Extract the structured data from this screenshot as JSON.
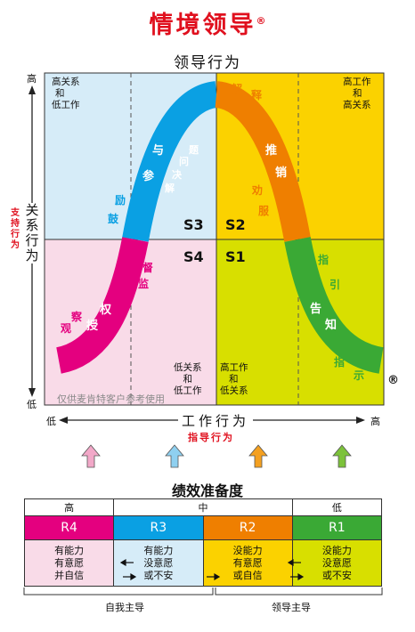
{
  "title": "情境领导",
  "title_mark": "®",
  "subtitle": "领导行为",
  "y_axis": {
    "high": "高",
    "low": "低",
    "label": "关系行为",
    "sublabel": "支持行为"
  },
  "x_axis": {
    "low": "低",
    "high": "高",
    "label": "工作行为",
    "sublabel": "指导行为"
  },
  "quadrants": {
    "top_left": [
      "高关系",
      "和",
      "低工作"
    ],
    "top_right": [
      "高工作",
      "和",
      "高关系"
    ],
    "bottom_left": [
      "低关系",
      "和",
      "低工作"
    ],
    "bottom_right": [
      "高工作",
      "和",
      "低关系"
    ]
  },
  "styles": {
    "s1": "S1",
    "s2": "S2",
    "s3": "S3",
    "s4": "S4"
  },
  "curve_words": {
    "s4_main": [
      "授",
      "权"
    ],
    "s4_sub": [
      "观",
      "察"
    ],
    "s4_sub2": [
      "监",
      "督"
    ],
    "s3_main": [
      "参",
      "与"
    ],
    "s3_sub": [
      "鼓",
      "励"
    ],
    "s3_sub2": [
      "解",
      "决",
      "问",
      "题"
    ],
    "s2_main": [
      "推",
      "销"
    ],
    "s2_sub": [
      "解",
      "释"
    ],
    "s2_sub2": [
      "劝",
      "服"
    ],
    "s1_main": [
      "告",
      "知"
    ],
    "s1_sub": [
      "指",
      "引"
    ],
    "s1_sub2": [
      "指",
      "示"
    ]
  },
  "registered_mark": "®",
  "watermark": "仅供麦肯特客户参考使用",
  "readiness": {
    "title": "绩效准备度",
    "header": {
      "high": "高",
      "mid": "中",
      "low": "低"
    },
    "levels": [
      {
        "code": "R4",
        "color": "#e4007f",
        "bg": "#f9dbe8",
        "desc": [
          "有能力",
          "有意愿",
          "并自信"
        ]
      },
      {
        "code": "R3",
        "color": "#0aa0e3",
        "bg": "#d6ecf8",
        "desc": [
          "有能力",
          "没意愿",
          "或不安"
        ]
      },
      {
        "code": "R2",
        "color": "#ef7f00",
        "bg": "#fbd200",
        "desc": [
          "没能力",
          "有意愿",
          "或自信"
        ]
      },
      {
        "code": "R1",
        "color": "#3aa935",
        "bg": "#d8df00",
        "desc": [
          "没能力",
          "没意愿",
          "或不安"
        ]
      }
    ],
    "footer": {
      "self": "自我主导",
      "leader": "领导主导"
    }
  },
  "colors": {
    "q_top_left": "#d6ecf8",
    "q_top_right": "#fbd200",
    "q_bottom_left": "#f9dbe8",
    "q_bottom_right": "#d8df00",
    "s1": "#3aa935",
    "s2": "#ef7f00",
    "s3": "#0aa0e3",
    "s4": "#e4007f",
    "title": "#e0101e"
  }
}
